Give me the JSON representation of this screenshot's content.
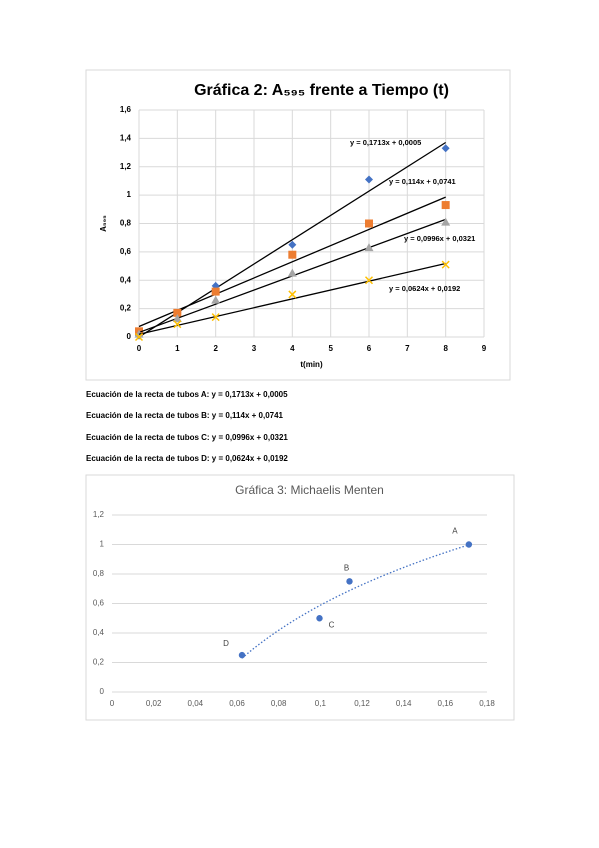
{
  "chart_data": [
    {
      "type": "scatter",
      "title": "Gráfica 2: A₅₉₅ frente a Tiempo (t)",
      "x_label": "t(min)",
      "y_label": "A₅₉₅",
      "x": [
        0,
        1,
        2,
        4,
        6,
        8
      ],
      "series": [
        {
          "color": "#4472c4",
          "marker": "diamond",
          "values": [
            0.01,
            0.17,
            0.36,
            0.65,
            1.11,
            1.33
          ],
          "trendline": {
            "slope": 0.1713,
            "intercept": 0.0005,
            "label": "y = 0,1713x + 0,0005"
          }
        },
        {
          "color": "#ed7d31",
          "marker": "square",
          "values": [
            0.04,
            0.17,
            0.32,
            0.58,
            0.8,
            0.93
          ],
          "trendline": {
            "slope": 0.114,
            "intercept": 0.0741,
            "label": "y = 0,114x + 0,0741"
          }
        },
        {
          "color": "#a5a5a5",
          "marker": "triangle",
          "values": [
            0.02,
            0.13,
            0.26,
            0.45,
            0.63,
            0.81
          ],
          "trendline": {
            "slope": 0.0996,
            "intercept": 0.0321,
            "label": "y = 0,0996x + 0,0321"
          }
        },
        {
          "color": "#ffc000",
          "marker": "x",
          "values": [
            0.0,
            0.09,
            0.14,
            0.3,
            0.4,
            0.51
          ],
          "trendline": {
            "slope": 0.0624,
            "intercept": 0.0192,
            "label": "y = 0,0624x + 0,0192"
          }
        }
      ],
      "trendline_color": "#000000",
      "xlim": [
        0,
        9
      ],
      "xticks": [
        0,
        1,
        2,
        3,
        4,
        5,
        6,
        7,
        8,
        9
      ],
      "ylim": [
        0,
        1.6
      ],
      "yticks": [
        0,
        {
          "value": 0.2,
          "label": "0,2"
        },
        {
          "value": 0.4,
          "label": "0,4"
        },
        {
          "value": 0.6,
          "label": "0,6"
        },
        {
          "value": 0.8,
          "label": "0,8"
        },
        1,
        {
          "value": 1.2,
          "label": "1,2"
        },
        {
          "value": 1.4,
          "label": "1,4"
        },
        {
          "value": 1.6,
          "label": "1,6"
        }
      ],
      "grid": "both"
    },
    {
      "type": "scatter",
      "title": "Gráfica 3: Michaelis Menten",
      "x": [
        0.1713,
        0.114,
        0.0996,
        0.0624
      ],
      "series": [
        {
          "color": "#4472c4",
          "marker": "circle",
          "values": [
            1,
            0.75,
            0.5,
            0.25
          ],
          "point_labels": [
            "A",
            "B",
            "C",
            "D"
          ],
          "trendline": {
            "type": "log"
          }
        }
      ],
      "trendline_color": "#4472c4",
      "xlim": [
        0,
        0.18
      ],
      "xticks": [
        0,
        {
          "value": 0.02,
          "label": "0,02"
        },
        {
          "value": 0.04,
          "label": "0,04"
        },
        {
          "value": 0.06,
          "label": "0,06"
        },
        {
          "value": 0.08,
          "label": "0,08"
        },
        {
          "value": 0.1,
          "label": "0,1"
        },
        {
          "value": 0.12,
          "label": "0,12"
        },
        {
          "value": 0.14,
          "label": "0,14"
        },
        {
          "value": 0.16,
          "label": "0,16"
        },
        {
          "value": 0.18,
          "label": "0,18"
        }
      ],
      "ylim": [
        0,
        1.2
      ],
      "yticks": [
        0,
        {
          "value": 0.2,
          "label": "0,2"
        },
        {
          "value": 0.4,
          "label": "0,4"
        },
        {
          "value": 0.6,
          "label": "0,6"
        },
        {
          "value": 0.8,
          "label": "0,8"
        },
        1,
        {
          "value": 1.2,
          "label": "1,2"
        }
      ],
      "grid": "y"
    }
  ],
  "equations": [
    "Ecuación de la recta de tubos A: y = 0,1713x + 0,0005",
    "Ecuación de la recta de tubos B: y = 0,114x + 0,0741",
    "Ecuación de la recta de tubos C: y = 0,0996x + 0,0321",
    "Ecuación de la recta de tubos D: y = 0,0624x + 0,0192"
  ]
}
